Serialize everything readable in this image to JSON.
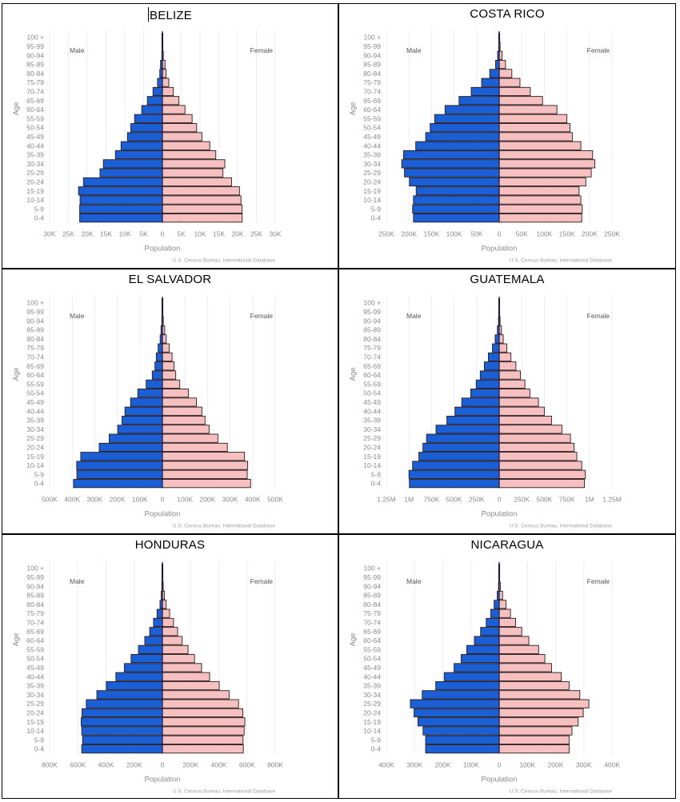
{
  "colors": {
    "male": "#1a5fd6",
    "female": "#f7c0c0",
    "bar_border": "#2b1a1a",
    "grid": "#eeeeee"
  },
  "chart_data": [
    {
      "type": "bar",
      "orientation": "horizontal-pyramid",
      "title": "BELIZE",
      "has_cursor": true,
      "xlabel": "Population",
      "ylabel": "Age",
      "legend": {
        "left": "Male",
        "right": "Female"
      },
      "source": "U.S. Census Bureau, International Database",
      "xlim": [
        -30000,
        30000
      ],
      "tick_values": [
        -30000,
        -25000,
        -20000,
        -15000,
        -10000,
        -5000,
        0,
        5000,
        10000,
        15000,
        20000,
        25000,
        30000
      ],
      "tick_labels": [
        "30K",
        "25K",
        "20K",
        "15K",
        "10K",
        "5K",
        "0",
        "5K",
        "10K",
        "15K",
        "20K",
        "25K",
        "30K"
      ],
      "grid": true,
      "categories": [
        "100 +",
        "95-99",
        "90-94",
        "85-89",
        "80-84",
        "75-79",
        "70-74",
        "65-69",
        "60-64",
        "55-59",
        "50-54",
        "45-49",
        "40-44",
        "35-39",
        "30-34",
        "25-29",
        "20-24",
        "15-19",
        "10-14",
        "5-9",
        "0-4"
      ],
      "series": [
        {
          "name": "Male",
          "values": [
            0,
            50,
            150,
            500,
            700,
            1300,
            2500,
            4000,
            5500,
            7400,
            8400,
            9300,
            11000,
            12500,
            15700,
            16600,
            21000,
            22300,
            21900,
            22000,
            22000
          ]
        },
        {
          "name": "Female",
          "values": [
            0,
            80,
            250,
            700,
            1000,
            1700,
            2900,
            4400,
            6000,
            7900,
            9100,
            10500,
            12600,
            14200,
            16600,
            16100,
            18400,
            20500,
            20900,
            21200,
            21200
          ]
        }
      ]
    },
    {
      "type": "bar",
      "orientation": "horizontal-pyramid",
      "title": "COSTA RICO",
      "has_cursor": false,
      "xlabel": "Population",
      "ylabel": "Age",
      "legend": {
        "left": "Male",
        "right": "Female"
      },
      "source": "U.S. Census Bureau, International Database",
      "xlim": [
        -250000,
        250000
      ],
      "tick_values": [
        -250000,
        -200000,
        -150000,
        -100000,
        -50000,
        0,
        50000,
        100000,
        150000,
        200000,
        250000
      ],
      "tick_labels": [
        "250K",
        "200K",
        "150K",
        "100K",
        "50K",
        "0",
        "50K",
        "100K",
        "150K",
        "200K",
        "250K"
      ],
      "grid": true,
      "categories": [
        "100 +",
        "95-99",
        "90-94",
        "85-89",
        "80-84",
        "75-79",
        "70-74",
        "65-69",
        "60-64",
        "55-59",
        "50-54",
        "45-49",
        "40-44",
        "35-39",
        "30-34",
        "25-29",
        "20-24",
        "15-19",
        "10-14",
        "5-9",
        "0-4"
      ],
      "series": [
        {
          "name": "Male",
          "values": [
            300,
            1000,
            3500,
            8000,
            21000,
            39000,
            62000,
            89000,
            120000,
            143000,
            153000,
            163000,
            185000,
            212000,
            216000,
            210000,
            199000,
            184000,
            190000,
            192000,
            190000
          ]
        },
        {
          "name": "Female",
          "values": [
            500,
            2000,
            6500,
            14000,
            28000,
            46000,
            69000,
            96000,
            128000,
            150000,
            157000,
            162000,
            181000,
            207000,
            212000,
            204000,
            192000,
            177000,
            181000,
            184000,
            183000
          ]
        }
      ]
    },
    {
      "type": "bar",
      "orientation": "horizontal-pyramid",
      "title": "EL SALVADOR",
      "has_cursor": false,
      "xlabel": "Population",
      "ylabel": "Age",
      "legend": {
        "left": "Male",
        "right": "Female"
      },
      "source": "U.S. Census Bureau, International Database",
      "xlim": [
        -500000,
        500000
      ],
      "tick_values": [
        -500000,
        -400000,
        -300000,
        -200000,
        -100000,
        0,
        100000,
        200000,
        300000,
        400000,
        500000
      ],
      "tick_labels": [
        "500K",
        "400K",
        "300K",
        "200K",
        "100K",
        "0",
        "100K",
        "200K",
        "300K",
        "400K",
        "500K"
      ],
      "grid": true,
      "categories": [
        "100 +",
        "95-99",
        "90-94",
        "85-89",
        "80-84",
        "75-79",
        "70-74",
        "65-69",
        "60-64",
        "55-59",
        "50-54",
        "45-49",
        "40-44",
        "35-39",
        "30-34",
        "25-29",
        "20-24",
        "15-19",
        "10-14",
        "5-9",
        "0-4"
      ],
      "series": [
        {
          "name": "Male",
          "values": [
            300,
            1000,
            2500,
            6000,
            10000,
            19000,
            27000,
            33000,
            45000,
            72000,
            109000,
            141000,
            166000,
            179000,
            198000,
            236000,
            280000,
            362000,
            380000,
            379000,
            394000
          ]
        },
        {
          "name": "Female",
          "values": [
            500,
            1500,
            4000,
            10000,
            17000,
            30000,
            43000,
            52000,
            59000,
            77000,
            115000,
            151000,
            175000,
            189000,
            207000,
            246000,
            288000,
            364000,
            378000,
            376000,
            391000
          ]
        }
      ]
    },
    {
      "type": "bar",
      "orientation": "horizontal-pyramid",
      "title": "GUATEMALA",
      "has_cursor": false,
      "xlabel": "Population",
      "ylabel": "Age",
      "legend": {
        "left": "Male",
        "right": "Female"
      },
      "source": "U.S. Census Bureau, International Database",
      "xlim": [
        -1250000,
        1250000
      ],
      "tick_values": [
        -1250000,
        -1000000,
        -750000,
        -500000,
        -250000,
        0,
        250000,
        500000,
        750000,
        1000000,
        1250000
      ],
      "tick_labels": [
        "1.25M",
        "1M",
        "750K",
        "500K",
        "250K",
        "0",
        "250K",
        "500K",
        "750K",
        "1M",
        "1.25M"
      ],
      "grid": true,
      "categories": [
        "100 +",
        "95-99",
        "90-94",
        "85-89",
        "80-84",
        "75-79",
        "70-74",
        "65-69",
        "60-64",
        "55-59",
        "50-54",
        "45-49",
        "40-44",
        "35-39",
        "30-34",
        "25-29",
        "20-24",
        "15-19",
        "10-14",
        "5-9",
        "0-4"
      ],
      "series": [
        {
          "name": "Male",
          "values": [
            1000,
            3000,
            8000,
            20000,
            45000,
            75000,
            120000,
            165000,
            210000,
            255000,
            315000,
            415000,
            490000,
            580000,
            700000,
            805000,
            845000,
            890000,
            960000,
            1000000,
            995000
          ]
        },
        {
          "name": "Female",
          "values": [
            1500,
            4000,
            10000,
            25000,
            45000,
            85000,
            130000,
            185000,
            235000,
            285000,
            340000,
            435000,
            500000,
            580000,
            695000,
            790000,
            830000,
            860000,
            915000,
            955000,
            945000
          ]
        }
      ]
    },
    {
      "type": "bar",
      "orientation": "horizontal-pyramid",
      "title": "HONDURAS",
      "has_cursor": false,
      "xlabel": "Population",
      "ylabel": "Age",
      "legend": {
        "left": "Male",
        "right": "Female"
      },
      "source": "U.S. Census Bureau, International Database",
      "xlim": [
        -800000,
        800000
      ],
      "tick_values": [
        -800000,
        -600000,
        -400000,
        -200000,
        0,
        200000,
        400000,
        600000,
        800000
      ],
      "tick_labels": [
        "800K",
        "600K",
        "400K",
        "200K",
        "0",
        "200K",
        "400K",
        "600K",
        "800K"
      ],
      "grid": true,
      "categories": [
        "100 +",
        "95-99",
        "90-94",
        "85-89",
        "80-84",
        "75-79",
        "70-74",
        "65-69",
        "60-64",
        "55-59",
        "50-54",
        "45-49",
        "40-44",
        "35-39",
        "30-34",
        "25-29",
        "20-24",
        "15-19",
        "10-14",
        "5-9",
        "0-4"
      ],
      "series": [
        {
          "name": "Male",
          "values": [
            500,
            1500,
            4000,
            8000,
            17000,
            38000,
            63000,
            90000,
            125000,
            170000,
            222000,
            270000,
            330000,
            398000,
            465000,
            540000,
            570000,
            576000,
            572000,
            566000,
            572000
          ]
        },
        {
          "name": "Female",
          "values": [
            700,
            2500,
            6000,
            15000,
            27000,
            51000,
            79000,
            108000,
            140000,
            182000,
            228000,
            278000,
            335000,
            403000,
            473000,
            540000,
            570000,
            585000,
            580000,
            572000,
            574000
          ]
        }
      ]
    },
    {
      "type": "bar",
      "orientation": "horizontal-pyramid",
      "title": "NICARAGUA",
      "has_cursor": false,
      "xlabel": "Population",
      "ylabel": "Age",
      "legend": {
        "left": "Male",
        "right": "Female"
      },
      "source": "U.S. Census Bureau, International Database",
      "xlim": [
        -400000,
        400000
      ],
      "tick_values": [
        -400000,
        -300000,
        -200000,
        -100000,
        0,
        100000,
        200000,
        300000,
        400000
      ],
      "tick_labels": [
        "400K",
        "300K",
        "200K",
        "100K",
        "0",
        "100K",
        "200K",
        "300K",
        "400K"
      ],
      "grid": true,
      "categories": [
        "100 +",
        "95-99",
        "90-94",
        "85-89",
        "80-84",
        "75-79",
        "70-74",
        "65-69",
        "60-64",
        "55-59",
        "50-54",
        "45-49",
        "40-44",
        "35-39",
        "30-34",
        "25-29",
        "20-24",
        "15-19",
        "10-14",
        "5-9",
        "0-4"
      ],
      "series": [
        {
          "name": "Male",
          "values": [
            300,
            1000,
            2500,
            7000,
            18000,
            30000,
            46000,
            66000,
            88000,
            115000,
            135000,
            160000,
            195000,
            225000,
            273000,
            315000,
            302000,
            288000,
            270000,
            261000,
            261000
          ]
        },
        {
          "name": "Female",
          "values": [
            500,
            1500,
            4000,
            12000,
            24000,
            40000,
            58000,
            80000,
            105000,
            140000,
            162000,
            186000,
            220000,
            248000,
            286000,
            318000,
            298000,
            280000,
            258000,
            248000,
            248000
          ]
        }
      ]
    }
  ]
}
